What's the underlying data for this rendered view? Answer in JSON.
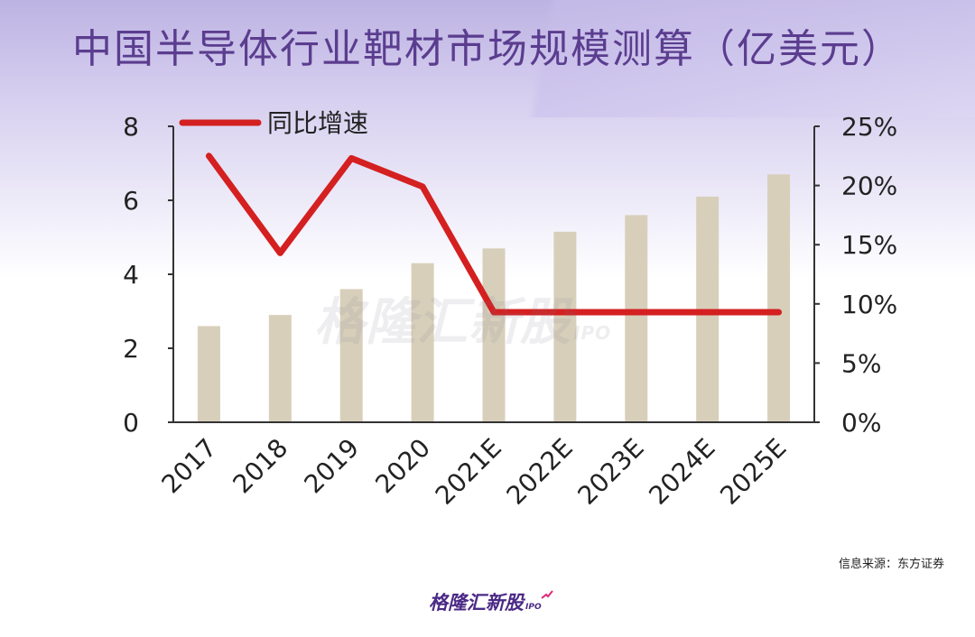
{
  "chart_data": {
    "type": "bar",
    "title": "中国半导体行业靶材市场规模测算（亿美元）",
    "categories": [
      "2017",
      "2018",
      "2019",
      "2020",
      "2021E",
      "2022E",
      "2023E",
      "2024E",
      "2025E"
    ],
    "series": [
      {
        "type": "bar",
        "axis": "left",
        "values": [
          2.6,
          2.9,
          3.6,
          4.3,
          4.7,
          5.15,
          5.6,
          6.1,
          6.7
        ],
        "color": "#d8cfbb"
      },
      {
        "type": "line",
        "axis": "right",
        "name": "同比增速",
        "values": [
          22.5,
          14.3,
          22.3,
          19.9,
          9.3,
          9.3,
          9.3,
          9.3,
          9.3
        ],
        "color": "#d42020"
      }
    ],
    "y_left": {
      "min": 0,
      "max": 8,
      "ticks": [
        0,
        2,
        4,
        6,
        8
      ]
    },
    "y_right": {
      "min": 0,
      "max": 25,
      "ticks": [
        "0%",
        "5%",
        "10%",
        "15%",
        "20%",
        "25%"
      ]
    },
    "grid": false,
    "legend": "top-left"
  },
  "source_text": "信息来源：东方证券",
  "watermark": {
    "text": "格隆汇新股",
    "suffix": "IPO"
  },
  "logo": {
    "text": "格隆汇新股",
    "suffix": "IPO"
  }
}
